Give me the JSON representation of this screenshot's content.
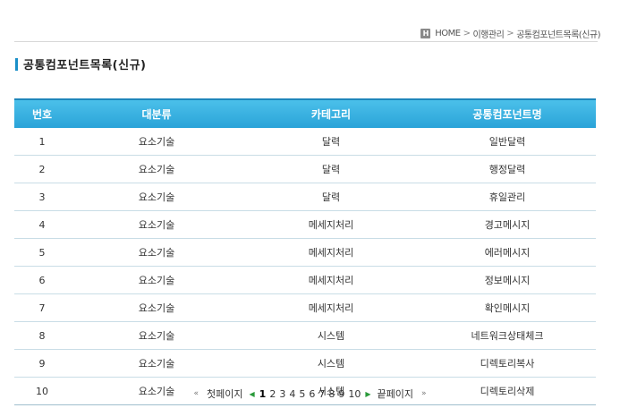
{
  "breadcrumb": {
    "home_icon": "H",
    "home": "HOME",
    "level1": "이행관리",
    "level2": "공통컴포넌트목록(신규)"
  },
  "page": {
    "title": "공통컴포넌트목록(신규)"
  },
  "table": {
    "headers": [
      "번호",
      "대분류",
      "카테고리",
      "공통컴포넌트명"
    ],
    "rows": [
      [
        "1",
        "요소기술",
        "달력",
        "일반달력"
      ],
      [
        "2",
        "요소기술",
        "달력",
        "행정달력"
      ],
      [
        "3",
        "요소기술",
        "달력",
        "휴일관리"
      ],
      [
        "4",
        "요소기술",
        "메세지처리",
        "경고메시지"
      ],
      [
        "5",
        "요소기술",
        "메세지처리",
        "에러메시지"
      ],
      [
        "6",
        "요소기술",
        "메세지처리",
        "정보메시지"
      ],
      [
        "7",
        "요소기술",
        "메세지처리",
        "확인메시지"
      ],
      [
        "8",
        "요소기술",
        "시스템",
        "네트워크상태체크"
      ],
      [
        "9",
        "요소기술",
        "시스템",
        "디렉토리복사"
      ],
      [
        "10",
        "요소기술",
        "시스템",
        "디렉토리삭제"
      ]
    ]
  },
  "pagination": {
    "first_arrow": "«",
    "first_label": "첫페이지",
    "prev_arrow": "◀",
    "pages": [
      "1",
      "2",
      "3",
      "4",
      "5",
      "6",
      "7",
      "8",
      "9",
      "10"
    ],
    "current": "1",
    "next_arrow": "▶",
    "last_label": "끝페이지",
    "last_arrow": "»"
  },
  "colors": {
    "header_bg": "#2aa3d8",
    "accent": "#1a8fc8"
  }
}
